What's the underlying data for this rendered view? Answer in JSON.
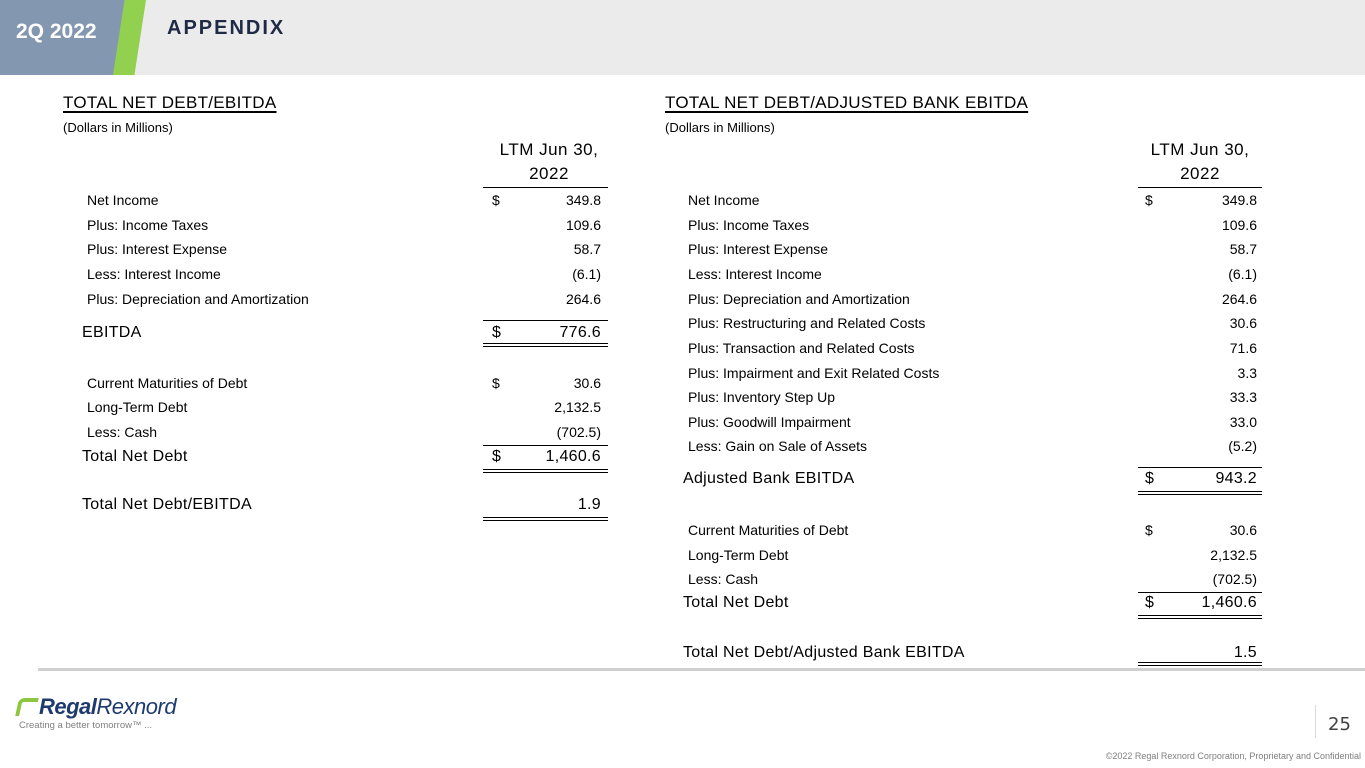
{
  "header": {
    "period": "2Q 2022",
    "title": "APPENDIX"
  },
  "left": {
    "title": "TOTAL NET DEBT/EBITDA",
    "subtitle": "(Dollars in Millions)",
    "col_header_1": "LTM Jun 30,",
    "col_header_2": "2022",
    "rows": [
      {
        "label": "Net Income",
        "dollar": "$",
        "value": "349.8"
      },
      {
        "label": "Plus:  Income Taxes",
        "dollar": "",
        "value": "109.6"
      },
      {
        "label": "Plus:  Interest Expense",
        "dollar": "",
        "value": "58.7"
      },
      {
        "label": "Less:  Interest Income",
        "dollar": "",
        "value": "(6.1)"
      },
      {
        "label": "Plus:  Depreciation and Amortization",
        "dollar": "",
        "value": "264.6"
      },
      {
        "label": "EBITDA",
        "dollar": "$",
        "value": "776.6"
      },
      {
        "label": "Current Maturities of Debt",
        "dollar": "$",
        "value": "30.6"
      },
      {
        "label": "Long-Term Debt",
        "dollar": "",
        "value": "2,132.5"
      },
      {
        "label": "Less: Cash",
        "dollar": "",
        "value": "(702.5)"
      },
      {
        "label": "Total Net Debt",
        "dollar": "$",
        "value": "1,460.6"
      },
      {
        "label": "Total Net Debt/EBITDA",
        "dollar": "",
        "value": "1.9"
      }
    ]
  },
  "right": {
    "title": "TOTAL NET DEBT/ADJUSTED BANK EBITDA",
    "subtitle": "(Dollars in Millions)",
    "col_header_1": "LTM Jun 30,",
    "col_header_2": "2022",
    "rows": [
      {
        "label": "Net Income",
        "dollar": "$",
        "value": "349.8"
      },
      {
        "label": "Plus:  Income Taxes",
        "dollar": "",
        "value": "109.6"
      },
      {
        "label": "Plus:  Interest Expense",
        "dollar": "",
        "value": "58.7"
      },
      {
        "label": "Less:  Interest Income",
        "dollar": "",
        "value": "(6.1)"
      },
      {
        "label": "Plus:  Depreciation and Amortization",
        "dollar": "",
        "value": "264.6"
      },
      {
        "label": "Plus:  Restructuring and Related Costs",
        "dollar": "",
        "value": "30.6"
      },
      {
        "label": "Plus:  Transaction and Related Costs",
        "dollar": "",
        "value": "71.6"
      },
      {
        "label": "Plus:  Impairment and Exit Related Costs",
        "dollar": "",
        "value": "3.3"
      },
      {
        "label": "Plus:  Inventory Step Up",
        "dollar": "",
        "value": "33.3"
      },
      {
        "label": "Plus:  Goodwill Impairment",
        "dollar": "",
        "value": "33.0"
      },
      {
        "label": "Less:  Gain on Sale of Assets",
        "dollar": "",
        "value": "(5.2)"
      },
      {
        "label": "Adjusted Bank EBITDA",
        "dollar": "$",
        "value": "943.2"
      },
      {
        "label": "Current Maturities of Debt",
        "dollar": "$",
        "value": "30.6"
      },
      {
        "label": "Long-Term Debt",
        "dollar": "",
        "value": "2,132.5"
      },
      {
        "label": "Less: Cash",
        "dollar": "",
        "value": "(702.5)"
      },
      {
        "label": "Total Net Debt",
        "dollar": "$",
        "value": "1,460.6"
      },
      {
        "label": "Total Net Debt/Adjusted Bank EBITDA",
        "dollar": "",
        "value": "1.5"
      }
    ]
  },
  "footer": {
    "logo_text_1": "Regal",
    "logo_text_2": "Rexnord",
    "tagline": "Creating a better tomorrow™ ...",
    "page_number": "25",
    "copyright": "©2022 Regal Rexnord Corporation, Proprietary and Confidential"
  }
}
